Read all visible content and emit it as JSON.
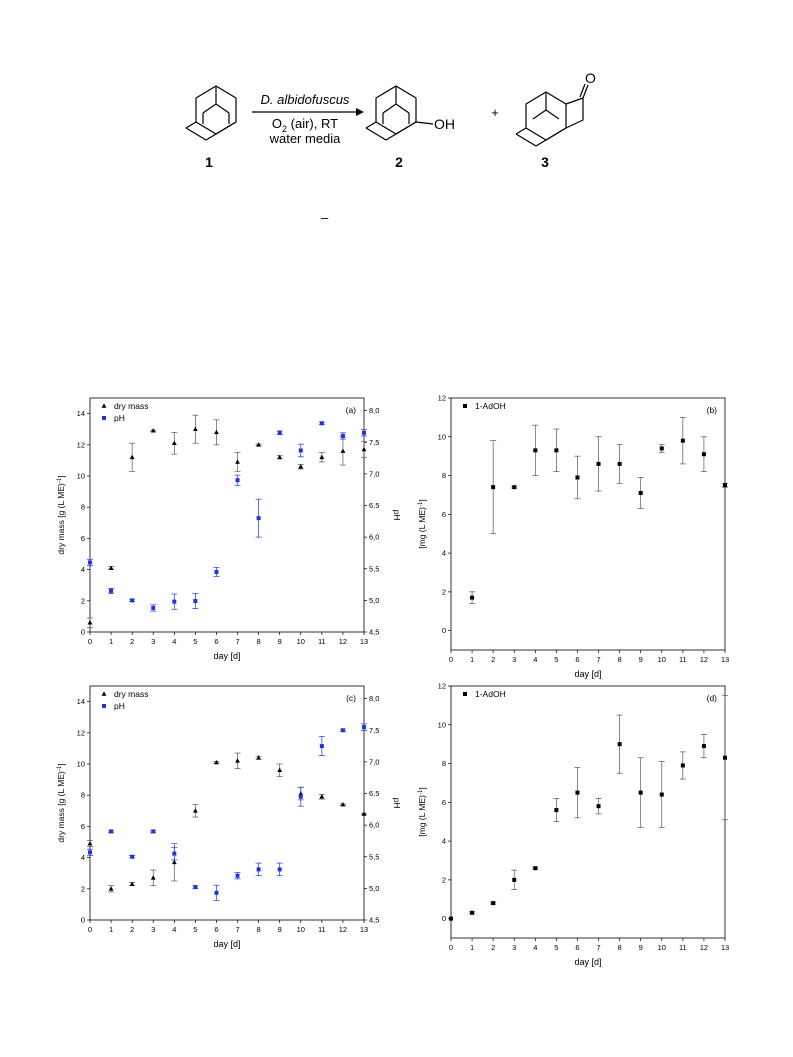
{
  "scheme": {
    "organism": "D. albidofuscus",
    "cond1_pre": "O",
    "cond1_sub": "2",
    "cond1_post": " (air), RT",
    "cond2": "water media",
    "product_group": "OH",
    "plus": "+",
    "oxo_atom": "O",
    "label_1": "1",
    "label_2": "2",
    "label_3": "3",
    "stray_mark": "–"
  },
  "chart_data": [
    {
      "id": "a",
      "type": "scatter",
      "panel_label": "(a)",
      "xlabel": "day [d]",
      "ylabel": "dry mass [g (L ME)",
      "ylabel_sup": "-1",
      "ylabel_close": "]",
      "y2label": "pH",
      "xlim": [
        0,
        13
      ],
      "ylim": [
        0,
        15
      ],
      "yticks": [
        "0",
        "2",
        "4",
        "6",
        "8",
        "10",
        "12",
        "14"
      ],
      "y2lim": [
        4.5,
        8.2
      ],
      "y2ticks": [
        "4,5",
        "5,0",
        "5,5",
        "6,0",
        "6,5",
        "7,0",
        "7,5",
        "8,0"
      ],
      "xticks": [
        "0",
        "1",
        "2",
        "3",
        "4",
        "5",
        "6",
        "7",
        "8",
        "9",
        "10",
        "11",
        "12",
        "13"
      ],
      "legend_position": "top-left",
      "series": [
        {
          "name": "dry mass",
          "axis": "left",
          "marker": "triangle",
          "color": "#000000",
          "x": [
            0,
            1,
            2,
            3,
            4,
            5,
            6,
            7,
            8,
            9,
            10,
            11,
            12,
            13
          ],
          "y": [
            0.6,
            4.1,
            11.2,
            12.9,
            12.1,
            13.0,
            12.8,
            10.9,
            12.0,
            11.2,
            10.6,
            11.2,
            11.6,
            11.7
          ],
          "err": [
            0.3,
            0.1,
            0.9,
            0.05,
            0.7,
            0.9,
            0.8,
            0.6,
            0.05,
            0.1,
            0.15,
            0.3,
            0.9,
            0.5
          ]
        },
        {
          "name": "pH",
          "axis": "right",
          "marker": "square",
          "color": "#2233dd",
          "x": [
            0,
            1,
            2,
            3,
            4,
            5,
            6,
            7,
            8,
            9,
            10,
            11,
            12,
            13
          ],
          "y": [
            5.6,
            5.15,
            5.0,
            4.88,
            4.98,
            4.99,
            5.45,
            6.9,
            6.3,
            7.65,
            7.37,
            7.8,
            7.6,
            7.65
          ],
          "err": [
            0.05,
            0.04,
            0.02,
            0.05,
            0.12,
            0.12,
            0.07,
            0.08,
            0.3,
            0.03,
            0.1,
            0.02,
            0.05,
            0.05
          ]
        }
      ]
    },
    {
      "id": "b",
      "type": "scatter",
      "panel_label": "(b)",
      "xlabel": "day [d]",
      "ylabel": "[mg (L ME)",
      "ylabel_sup": "-1",
      "ylabel_close": "]",
      "xlim": [
        0,
        13
      ],
      "ylim": [
        -1,
        12
      ],
      "yticks": [
        "0",
        "2",
        "4",
        "6",
        "8",
        "10",
        "12"
      ],
      "xticks": [
        "0",
        "1",
        "2",
        "3",
        "4",
        "5",
        "6",
        "7",
        "8",
        "9",
        "10",
        "11",
        "12",
        "13"
      ],
      "legend_position": "top-left",
      "series": [
        {
          "name": "1-AdOH",
          "axis": "left",
          "marker": "square",
          "color": "#000000",
          "x": [
            1,
            2,
            3,
            4,
            5,
            6,
            7,
            8,
            9,
            10,
            11,
            12,
            13
          ],
          "y": [
            1.7,
            7.4,
            7.4,
            9.3,
            9.3,
            7.9,
            8.6,
            8.6,
            7.1,
            9.4,
            9.8,
            9.1,
            7.5
          ],
          "err": [
            0.3,
            2.4,
            0.05,
            1.3,
            1.1,
            1.1,
            1.4,
            1.0,
            0.8,
            0.2,
            1.2,
            0.9,
            0.1
          ]
        }
      ]
    },
    {
      "id": "c",
      "type": "scatter",
      "panel_label": "(c)",
      "xlabel": "day [d]",
      "ylabel": "dry mass [g (L ME)",
      "ylabel_sup": "-1",
      "ylabel_close": "]",
      "y2label": "pH",
      "xlim": [
        0,
        13
      ],
      "ylim": [
        0,
        15
      ],
      "yticks": [
        "0",
        "2",
        "4",
        "6",
        "8",
        "10",
        "12",
        "14"
      ],
      "y2lim": [
        4.5,
        8.2
      ],
      "y2ticks": [
        "4,5",
        "5,0",
        "5,5",
        "6,0",
        "6,5",
        "7,0",
        "7,5",
        "8,0"
      ],
      "xticks": [
        "0",
        "1",
        "2",
        "3",
        "4",
        "5",
        "6",
        "7",
        "8",
        "9",
        "10",
        "11",
        "12",
        "13"
      ],
      "legend_position": "top-left",
      "series": [
        {
          "name": "dry mass",
          "axis": "left",
          "marker": "triangle",
          "color": "#000000",
          "x": [
            0,
            1,
            2,
            3,
            4,
            5,
            6,
            7,
            8,
            9,
            10,
            11,
            12,
            13
          ],
          "y": [
            4.9,
            2.0,
            2.3,
            2.7,
            3.7,
            7.0,
            10.1,
            10.2,
            10.4,
            9.6,
            8.1,
            7.9,
            7.4,
            6.8
          ],
          "err": [
            0.2,
            0.2,
            0.1,
            0.5,
            1.2,
            0.4,
            0.05,
            0.5,
            0.1,
            0.4,
            0.4,
            0.15,
            0.05,
            0.05
          ]
        },
        {
          "name": "pH",
          "axis": "right",
          "marker": "square",
          "color": "#2233dd",
          "x": [
            0,
            1,
            2,
            3,
            4,
            5,
            6,
            7,
            8,
            9,
            10,
            11,
            12,
            13
          ],
          "y": [
            5.57,
            5.9,
            5.5,
            5.9,
            5.55,
            5.02,
            4.93,
            5.2,
            5.3,
            5.3,
            6.45,
            7.25,
            7.5,
            7.55
          ],
          "err": [
            0.05,
            0.02,
            0.02,
            0.02,
            0.1,
            0.02,
            0.12,
            0.05,
            0.1,
            0.1,
            0.15,
            0.15,
            0.02,
            0.05
          ]
        }
      ]
    },
    {
      "id": "d",
      "type": "scatter",
      "panel_label": "(d)",
      "xlabel": "day [d]",
      "ylabel": "[mg (L ME)",
      "ylabel_sup": "-1",
      "ylabel_close": "]",
      "xlim": [
        0,
        13
      ],
      "ylim": [
        -1,
        12
      ],
      "yticks": [
        "0",
        "2",
        "4",
        "6",
        "8",
        "10",
        "12"
      ],
      "xticks": [
        "0",
        "1",
        "2",
        "3",
        "4",
        "5",
        "6",
        "7",
        "8",
        "9",
        "10",
        "11",
        "12",
        "13"
      ],
      "legend_position": "top-left",
      "series": [
        {
          "name": "1-AdOH",
          "axis": "left",
          "marker": "square",
          "color": "#000000",
          "x": [
            0,
            1,
            2,
            3,
            4,
            5,
            6,
            7,
            8,
            9,
            10,
            11,
            12,
            13
          ],
          "y": [
            0,
            0.3,
            0.8,
            2.0,
            2.6,
            5.6,
            6.5,
            5.8,
            9.0,
            6.5,
            6.4,
            7.9,
            8.9,
            8.3
          ],
          "err": [
            0,
            0.05,
            0.05,
            0.5,
            0.05,
            0.6,
            1.3,
            0.4,
            1.5,
            1.8,
            1.7,
            0.7,
            0.6,
            3.2
          ]
        }
      ]
    }
  ]
}
